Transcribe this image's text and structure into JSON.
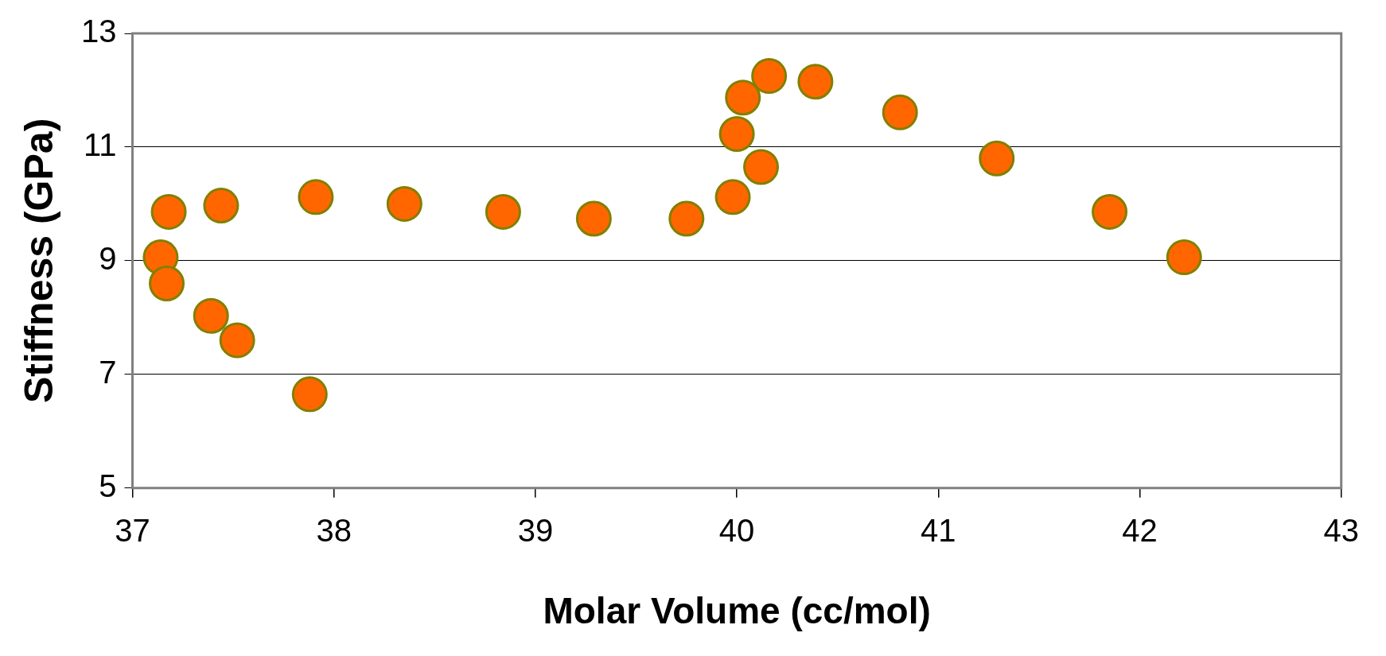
{
  "chart_data": {
    "type": "scatter",
    "xlabel": "Molar Volume (cc/mol)",
    "ylabel": "Stiffness (GPa)",
    "x": [
      37.14,
      37.17,
      37.18,
      37.39,
      37.44,
      37.52,
      37.88,
      37.91,
      38.35,
      38.84,
      39.29,
      39.75,
      39.98,
      40.0,
      40.03,
      40.12,
      40.16,
      40.39,
      40.81,
      41.29,
      41.85,
      42.22
    ],
    "series": [
      {
        "color": "#ff6600",
        "values": [
          9.06,
          8.6,
          9.86,
          8.03,
          9.97,
          7.6,
          6.65,
          10.12,
          10.0,
          9.86,
          9.74,
          9.74,
          10.12,
          11.23,
          11.87,
          10.65,
          12.25,
          12.15,
          11.61,
          10.8,
          9.86,
          9.06
        ]
      }
    ],
    "xlim": [
      37,
      43
    ],
    "xticks": [
      37,
      38,
      39,
      40,
      41,
      42,
      43
    ],
    "ylim": [
      5,
      13
    ],
    "yticks": [
      5,
      7,
      9,
      11,
      13
    ],
    "grid": "y",
    "marker": "circle",
    "legend": false
  }
}
